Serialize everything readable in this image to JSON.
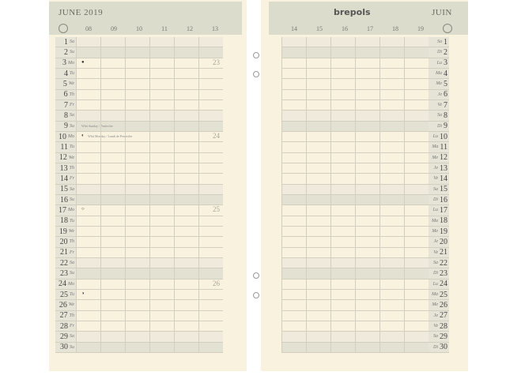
{
  "left": {
    "title": "JUNE 2019",
    "hours": [
      "08",
      "09",
      "10",
      "11",
      "12",
      "13"
    ],
    "clock_icon": "clock-icon"
  },
  "right": {
    "brand": "brepols",
    "title": "JUIN",
    "hours": [
      "14",
      "15",
      "16",
      "17",
      "18",
      "19"
    ],
    "clock_icon": "clock-icon"
  },
  "days": [
    {
      "n": "1",
      "en": "Sa",
      "fr": "Sa"
    },
    {
      "n": "2",
      "en": "Su",
      "fr": "Di"
    },
    {
      "n": "3",
      "en": "Mo",
      "fr": "Lu",
      "week": "23",
      "moon": "●"
    },
    {
      "n": "4",
      "en": "Tu",
      "fr": "Ma"
    },
    {
      "n": "5",
      "en": "We",
      "fr": "Me"
    },
    {
      "n": "6",
      "en": "Th",
      "fr": "Je"
    },
    {
      "n": "7",
      "en": "Fr",
      "fr": "Ve"
    },
    {
      "n": "8",
      "en": "Sa",
      "fr": "Sa"
    },
    {
      "n": "9",
      "en": "Su",
      "fr": "Di",
      "note": "Whit Sunday / Pentecôte"
    },
    {
      "n": "10",
      "en": "Mo",
      "fr": "Lu",
      "week": "24",
      "moon": "◐",
      "note": "Whit Monday / Lundi de Pentecôte"
    },
    {
      "n": "11",
      "en": "Tu",
      "fr": "Ma"
    },
    {
      "n": "12",
      "en": "We",
      "fr": "Me"
    },
    {
      "n": "13",
      "en": "Th",
      "fr": "Je"
    },
    {
      "n": "14",
      "en": "Fr",
      "fr": "Ve"
    },
    {
      "n": "15",
      "en": "Sa",
      "fr": "Sa"
    },
    {
      "n": "16",
      "en": "Su",
      "fr": "Di"
    },
    {
      "n": "17",
      "en": "Mo",
      "fr": "Lu",
      "week": "25",
      "moon": "○"
    },
    {
      "n": "18",
      "en": "Tu",
      "fr": "Ma"
    },
    {
      "n": "19",
      "en": "We",
      "fr": "Me"
    },
    {
      "n": "20",
      "en": "Th",
      "fr": "Je"
    },
    {
      "n": "21",
      "en": "Fr",
      "fr": "Ve"
    },
    {
      "n": "22",
      "en": "Sa",
      "fr": "Sa"
    },
    {
      "n": "23",
      "en": "Su",
      "fr": "Di"
    },
    {
      "n": "24",
      "en": "Mo",
      "fr": "Lu",
      "week": "26"
    },
    {
      "n": "25",
      "en": "Tu",
      "fr": "Ma",
      "moon": "◑"
    },
    {
      "n": "26",
      "en": "We",
      "fr": "Me"
    },
    {
      "n": "27",
      "en": "Th",
      "fr": "Je"
    },
    {
      "n": "28",
      "en": "Fr",
      "fr": "Ve"
    },
    {
      "n": "29",
      "en": "Sa",
      "fr": "Sa"
    },
    {
      "n": "30",
      "en": "Su",
      "fr": "Di"
    }
  ]
}
